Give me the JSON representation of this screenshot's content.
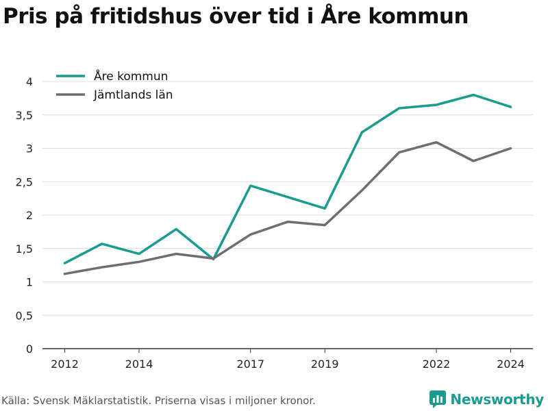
{
  "title": "Pris på fritidshus över tid i Åre kommun",
  "source": "Källa: Svensk Mäklarstatistik. Priserna visas i miljoner kronor.",
  "brand": {
    "name": "Newsworthy",
    "icon": "newsworthy-logo-icon",
    "color": "#1a9b90"
  },
  "chart_data": {
    "type": "line",
    "title": "Pris på fritidshus över tid i Åre kommun",
    "xlabel": "",
    "ylabel": "",
    "x": [
      2012,
      2013,
      2014,
      2015,
      2016,
      2017,
      2018,
      2019,
      2020,
      2021,
      2022,
      2023,
      2024
    ],
    "x_ticks": [
      2012,
      2014,
      2017,
      2019,
      2022,
      2024
    ],
    "y_ticks": [
      0,
      0.5,
      1,
      1.5,
      2,
      2.5,
      3,
      3.5,
      4
    ],
    "y_tick_labels": [
      "0",
      "0,5",
      "1",
      "1,5",
      "2",
      "2,5",
      "3",
      "3,5",
      "4"
    ],
    "ylim": [
      0,
      4
    ],
    "grid": true,
    "legend_position": "top-left",
    "series": [
      {
        "name": "Åre kommun",
        "color": "#1a9b90",
        "values": [
          1.28,
          1.57,
          1.42,
          1.79,
          1.34,
          2.44,
          2.27,
          2.1,
          3.24,
          3.6,
          3.65,
          3.8,
          3.62
        ]
      },
      {
        "name": "Jämtlands län",
        "color": "#6e6d72",
        "values": [
          1.12,
          1.22,
          1.3,
          1.42,
          1.35,
          1.71,
          1.9,
          1.85,
          2.37,
          2.94,
          3.09,
          2.81,
          3.0
        ]
      }
    ]
  }
}
